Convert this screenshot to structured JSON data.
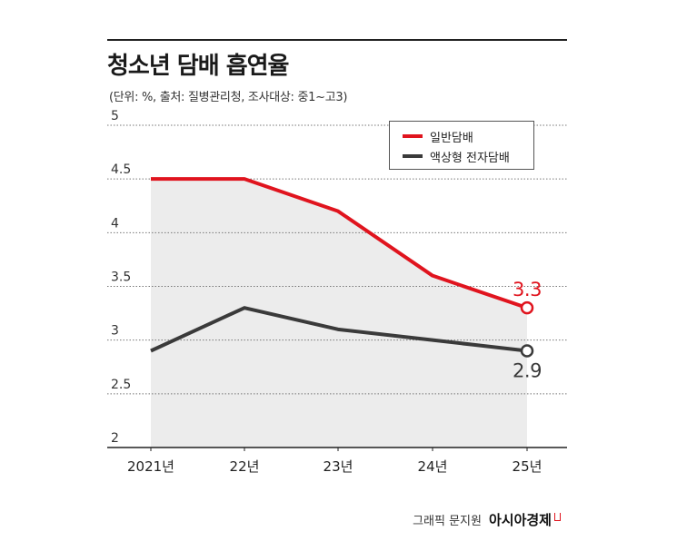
{
  "chart_data": {
    "type": "line",
    "title": "청소년 담배 흡연율",
    "subtitle": "(단위: %, 출처: 질병관리청, 조사대상: 중1~고3)",
    "categories": [
      "2021년",
      "22년",
      "23년",
      "24년",
      "25년"
    ],
    "y_ticks": [
      "5",
      "4.5",
      "4",
      "3.5",
      "3",
      "2.5",
      "2"
    ],
    "ylim": [
      2,
      5
    ],
    "grid": true,
    "legend_position": "top-right",
    "series": [
      {
        "name": "일반담배",
        "values": [
          4.5,
          4.5,
          4.2,
          3.6,
          3.3
        ],
        "color": "#e0141e",
        "end_label": "3.3"
      },
      {
        "name": "액상형 전자담배",
        "values": [
          2.9,
          3.3,
          3.1,
          3.0,
          2.9
        ],
        "color": "#3a3a3a",
        "end_label": "2.9"
      }
    ]
  },
  "credit": {
    "text": "그래픽 문지원",
    "brand": "아시아경제"
  },
  "colors": {
    "area_fill": "#ececec",
    "grid": "#777777"
  }
}
